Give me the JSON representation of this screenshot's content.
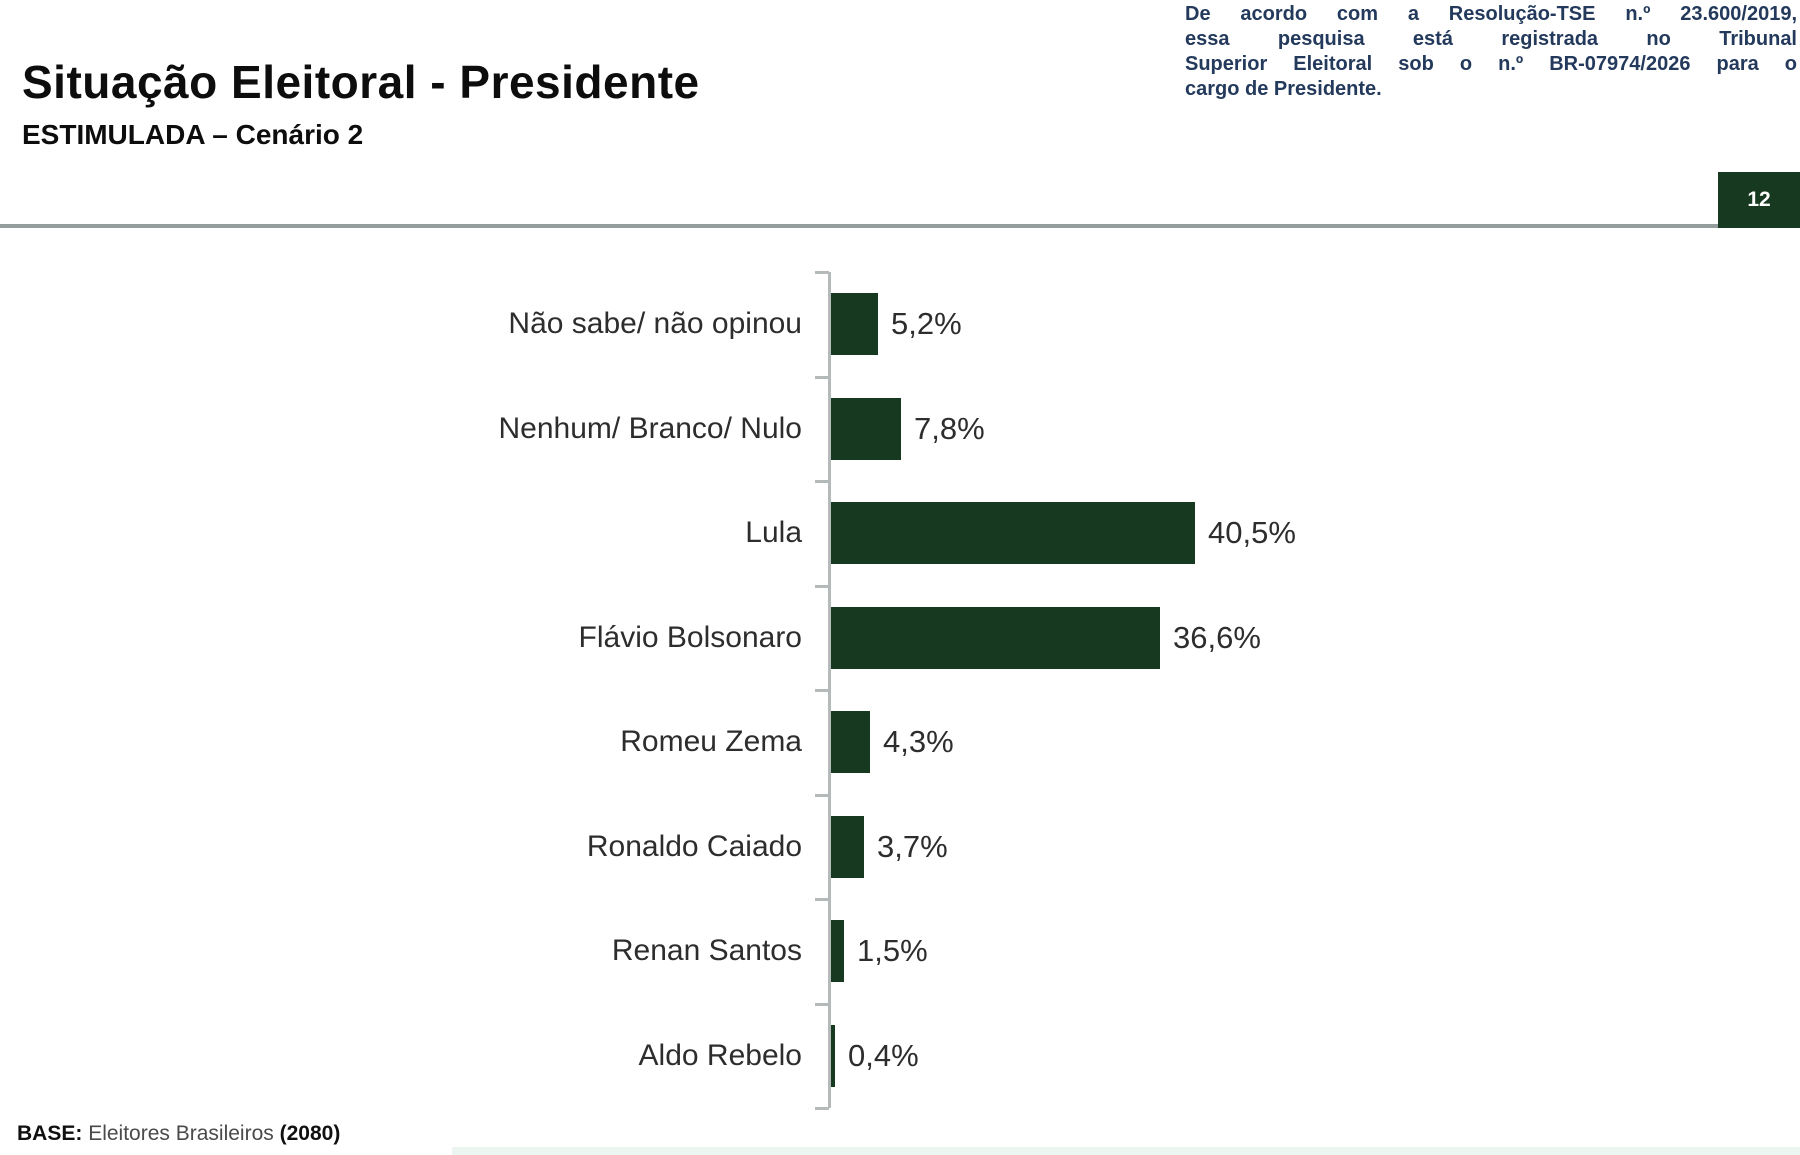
{
  "header": {
    "title": "Situação Eleitoral - Presidente",
    "subtitle": "ESTIMULADA – Cenário 2",
    "tse_note_lines": [
      "De acordo com a Resolução-TSE n.º 23.600/2019,",
      "essa pesquisa está registrada no Tribunal",
      "Superior Eleitoral sob o n.º BR-07974/2026 para o",
      "cargo de Presidente."
    ],
    "page_number": "12"
  },
  "chart_data": {
    "type": "bar",
    "orientation": "horizontal",
    "title": "Situação Eleitoral - Presidente — ESTIMULADA – Cenário 2",
    "categories": [
      "Não sabe/ não opinou",
      "Nenhum/ Branco/ Nulo",
      "Lula",
      "Flávio Bolsonaro",
      "Romeu Zema",
      "Ronaldo Caiado",
      "Renan Santos",
      "Aldo Rebelo"
    ],
    "values": [
      5.2,
      7.8,
      40.5,
      36.6,
      4.3,
      3.7,
      1.5,
      0.4
    ],
    "value_labels": [
      "5,2%",
      "7,8%",
      "40,5%",
      "36,6%",
      "4,3%",
      "3,7%",
      "1,5%",
      "0,4%"
    ],
    "bar_color": "#17391f",
    "xlim": [
      0,
      45
    ],
    "grid": false,
    "legend": false,
    "xlabel": "",
    "ylabel": ""
  },
  "footer": {
    "base_label": "BASE:",
    "base_text": "Eleitores Brasileiros",
    "base_count": "(2080)"
  },
  "colors": {
    "bar_green": "#17391f",
    "badge_green": "#17391f",
    "note_navy": "#243a5c",
    "divider_gray": "#949e9d",
    "axis_gray": "#b4baba"
  }
}
